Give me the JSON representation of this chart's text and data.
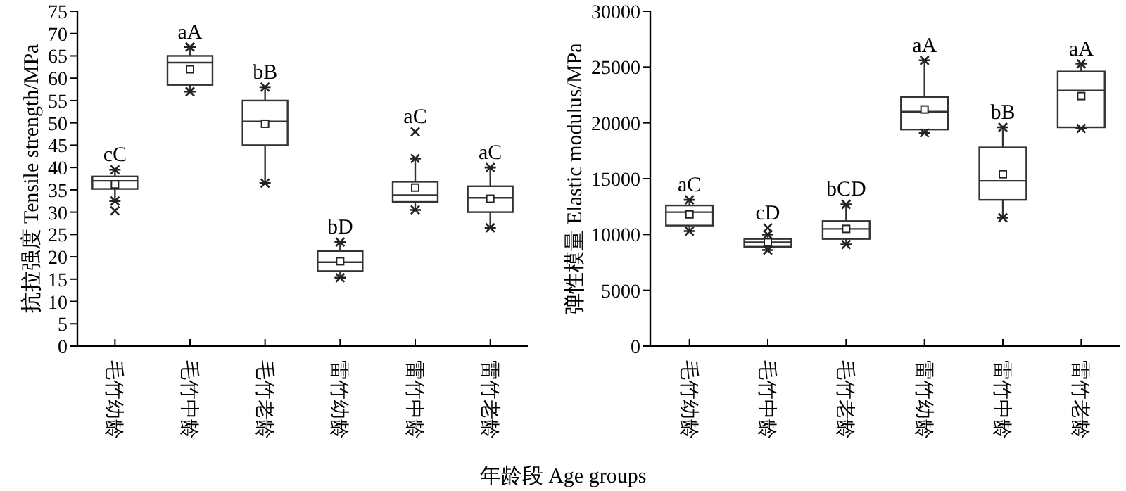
{
  "chart_data": [
    {
      "type": "box",
      "ylabel": "抗拉强度 Tensile strength/MPa",
      "xlabel": "年龄段 Age groups",
      "categories": [
        "毛竹幼龄",
        "毛竹中龄",
        "毛竹老龄",
        "雷竹幼龄",
        "雷竹中龄",
        "雷竹老龄"
      ],
      "boxes": [
        {
          "low": 32.5,
          "q1": 35.2,
          "median": 37,
          "q3": 38,
          "high": 39.5,
          "mean": 36.2,
          "outliers": [
            30.3
          ]
        },
        {
          "low": 57,
          "q1": 58.5,
          "median": 63.5,
          "q3": 65,
          "high": 67,
          "mean": 62
        },
        {
          "low": 36.5,
          "q1": 45,
          "median": 50.3,
          "q3": 55,
          "high": 58,
          "mean": 49.8
        },
        {
          "low": 15.3,
          "q1": 16.8,
          "median": 18.8,
          "q3": 21.3,
          "high": 23.3,
          "mean": 19
        },
        {
          "low": 30.5,
          "q1": 32.3,
          "median": 33.8,
          "q3": 36.8,
          "high": 42,
          "mean": 35.5,
          "outliers": [
            48
          ]
        },
        {
          "low": 26.5,
          "q1": 30,
          "median": 33.2,
          "q3": 35.8,
          "high": 40,
          "mean": 33
        }
      ],
      "ylim": [
        0,
        75
      ],
      "yticks": [
        0,
        5,
        10,
        15,
        20,
        25,
        30,
        35,
        40,
        45,
        50,
        55,
        60,
        65,
        70,
        75
      ],
      "annotations": [
        "cC",
        "aA",
        "bB",
        "bD",
        "aC",
        "aC"
      ]
    },
    {
      "type": "box",
      "ylabel": "弹性模量 Elastic modulus/MPa",
      "categories": [
        "毛竹幼龄",
        "毛竹中龄",
        "毛竹老龄",
        "雷竹幼龄",
        "雷竹中龄",
        "雷竹老龄"
      ],
      "boxes": [
        {
          "low": 10300,
          "q1": 10800,
          "median": 12000,
          "q3": 12600,
          "high": 13100,
          "mean": 11800
        },
        {
          "low": 8600,
          "q1": 8900,
          "median": 9300,
          "q3": 9600,
          "high": 10000,
          "mean": 9300,
          "outliers": [
            10600
          ]
        },
        {
          "low": 9100,
          "q1": 9600,
          "median": 10500,
          "q3": 11200,
          "high": 12700,
          "mean": 10500
        },
        {
          "low": 19100,
          "q1": 19400,
          "median": 21000,
          "q3": 22300,
          "high": 25600,
          "mean": 21200
        },
        {
          "low": 11500,
          "q1": 13100,
          "median": 14800,
          "q3": 17800,
          "high": 19600,
          "mean": 15400
        },
        {
          "low": 19500,
          "q1": 19600,
          "median": 22900,
          "q3": 24600,
          "high": 25300,
          "mean": 22400
        }
      ],
      "ylim": [
        0,
        30000
      ],
      "yticks": [
        0,
        5000,
        10000,
        15000,
        20000,
        25000,
        30000
      ],
      "annotations": [
        "aC",
        "cD",
        "bCD",
        "aA",
        "bB",
        "aA"
      ]
    }
  ]
}
